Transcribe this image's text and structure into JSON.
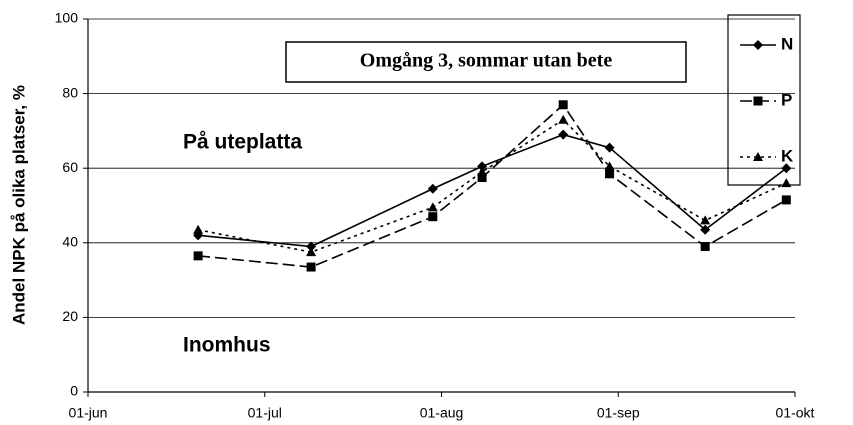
{
  "chart_data": {
    "type": "line",
    "annotations": [
      "Omgång 3, sommar utan bete",
      "På uteplatta",
      "Inomhus"
    ],
    "y_label": "Andel NPK på olika platser, %",
    "x": [
      "20-jun",
      "09-jul",
      "30-jul",
      "08-aug",
      "22-aug",
      "30-aug",
      "16-sep",
      "30-sep"
    ],
    "xlim": [
      "01-jun",
      "01-okt"
    ],
    "xticks": [
      "01-jun",
      "01-jul",
      "01-aug",
      "01-sep",
      "01-okt"
    ],
    "ylim": [
      0,
      100
    ],
    "yticks": [
      0,
      20,
      40,
      60,
      80,
      100
    ],
    "grid": true,
    "series": [
      {
        "name": "N",
        "color": "#000000",
        "dash": "solid",
        "marker": "diamond",
        "values": [
          42,
          39,
          54.5,
          60.5,
          69,
          65.5,
          43.5,
          60
        ]
      },
      {
        "name": "P",
        "color": "#000000",
        "dash": "dashed",
        "marker": "square",
        "values": [
          36.5,
          33.5,
          47,
          57.5,
          77,
          58.5,
          39,
          51.5
        ]
      },
      {
        "name": "K",
        "color": "#000000",
        "dash": "dotted",
        "marker": "triangle",
        "values": [
          43.5,
          37.5,
          49.5,
          59,
          73,
          60.5,
          46,
          56
        ]
      }
    ]
  }
}
